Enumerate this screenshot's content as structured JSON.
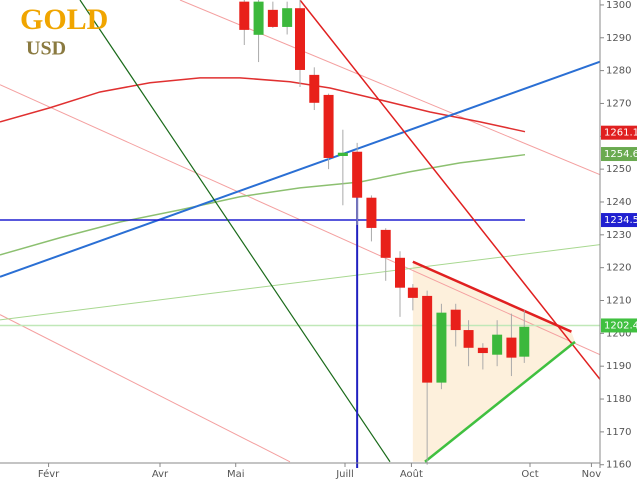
{
  "chart_data": {
    "type": "candlestick",
    "title": "GOLD",
    "subtitle": "USD",
    "title_color": "#f0a500",
    "subtitle_color": "#8a7a40",
    "xlim": [
      0,
      42
    ],
    "ylim": [
      1159,
      1301.5
    ],
    "xticks": [
      {
        "value": 3.4,
        "label": "Févr"
      },
      {
        "value": 11.2,
        "label": "Avr"
      },
      {
        "value": 16.5,
        "label": "Mai"
      },
      {
        "value": 24.15,
        "label": "Juill"
      },
      {
        "value": 28.8,
        "label": "Août"
      },
      {
        "value": 37.1,
        "label": "Oct"
      },
      {
        "value": 41.4,
        "label": "Nov"
      }
    ],
    "yticks": [
      1160,
      1170,
      1180,
      1190,
      1200,
      1210,
      1220,
      1230,
      1240,
      1250,
      1260,
      1270,
      1280,
      1290,
      1300
    ],
    "up_color": "#3cb83c",
    "down_color": "#e8201a",
    "x": [
      17.1,
      18.1,
      19.1,
      20.1,
      21.0,
      22.0,
      23.0,
      24.0,
      25.0,
      26.0,
      27.0,
      28.0,
      28.9,
      29.9,
      30.9,
      31.9,
      32.8,
      33.8,
      34.8,
      35.8,
      36.7
    ],
    "open": [
      1301,
      1290.9,
      1298.5,
      1293.3,
      1299,
      1278.7,
      1272.6,
      1254,
      1255.3,
      1241.3,
      1231.5,
      1223,
      1213.9,
      1211.4,
      1185,
      1207.2,
      1201,
      1195.6,
      1193.5,
      1198.7,
      1192.9
    ],
    "high": [
      1301.5,
      1301.5,
      1301,
      1301,
      1301.5,
      1281,
      1273,
      1262,
      1258,
      1242,
      1232,
      1225,
      1215,
      1213,
      1209,
      1209,
      1204,
      1197,
      1204,
      1206,
      1207
    ],
    "low": [
      1287.8,
      1282.6,
      1293,
      1291,
      1275,
      1268,
      1250,
      1239,
      1233,
      1228,
      1216,
      1205,
      1207,
      1160,
      1183,
      1196,
      1190,
      1189,
      1190,
      1187,
      1191
    ],
    "close": [
      1292.4,
      1301,
      1293.3,
      1299,
      1280.2,
      1270.2,
      1253.4,
      1255,
      1241.3,
      1232.1,
      1223,
      1213.9,
      1210.8,
      1185,
      1206.3,
      1201,
      1195.6,
      1194,
      1199.6,
      1192.6,
      1202
    ],
    "lines": [
      {
        "color": "#f4a0a0",
        "width": 1,
        "x": [
          0,
          20.3
        ],
        "values": [
          1205.7,
          1160.9
        ]
      },
      {
        "color": "#f4a0a0",
        "width": 1,
        "x": [
          0,
          42
        ],
        "values": [
          1275.7,
          1193.5
        ]
      },
      {
        "color": "#f4a0a0",
        "width": 1,
        "x": [
          12.6,
          42
        ],
        "values": [
          1301.5,
          1248.3
        ]
      },
      {
        "color": "#c0e8b8",
        "width": 1.5,
        "x": [
          0,
          42
        ],
        "values": [
          1202.4,
          1202.4
        ]
      },
      {
        "color": "#a8d890",
        "width": 1,
        "x": [
          0,
          42
        ],
        "values": [
          1204.1,
          1227.0
        ]
      },
      {
        "color": "#8cc070",
        "width": 1.5,
        "x": [
          0,
          4.2,
          8.4,
          12.6,
          16.8,
          21,
          25.2,
          28.7,
          32.2,
          36.75
        ],
        "values": [
          1223.9,
          1229.1,
          1233.9,
          1237.6,
          1241.6,
          1244.3,
          1246.1,
          1249.2,
          1251.9,
          1254.4
        ]
      },
      {
        "color": "#e03030",
        "width": 1.5,
        "x": [
          0,
          3.5,
          7,
          10.5,
          14,
          16.8,
          20.3,
          23.1,
          26.6,
          30.1,
          33.6,
          36.75
        ],
        "values": [
          1264.4,
          1268.7,
          1273.5,
          1276.3,
          1277.8,
          1277.8,
          1276.6,
          1274.7,
          1271.1,
          1267.4,
          1264.4,
          1261.4
        ]
      },
      {
        "color": "#2a6fd4",
        "width": 2,
        "x": [
          0,
          42
        ],
        "values": [
          1217.2,
          1282.7
        ]
      },
      {
        "color": "#2020d0",
        "width": 1.5,
        "x": [
          0,
          36.75
        ],
        "values": [
          1234.5,
          1234.5
        ]
      },
      {
        "color": "#1a6a1a",
        "width": 1.2,
        "x": [
          5.6,
          27.3
        ],
        "values": [
          1301.5,
          1160.9
        ]
      },
      {
        "color": "#e02020",
        "width": 1.5,
        "x": [
          21,
          42
        ],
        "values": [
          1301.5,
          1186
        ]
      },
      {
        "color": "#2020c0",
        "width": 2,
        "x": [
          25,
          25
        ],
        "values": [
          1246.7,
          1159
        ]
      },
      {
        "color": "#e02020",
        "width": 2.5,
        "x": [
          28.9,
          40
        ],
        "values": [
          1221.8,
          1200.5
        ]
      },
      {
        "color": "#40c040",
        "width": 2.5,
        "x": [
          29.75,
          40.25
        ],
        "values": [
          1160.9,
          1197.4
        ]
      }
    ],
    "price_labels": [
      {
        "value": 1261.1,
        "color": "#e02020"
      },
      {
        "value": 1254.6,
        "color": "#6aaa50"
      },
      {
        "value": 1234.5,
        "color": "#2020d0"
      },
      {
        "value": 1202.4,
        "color": "#40c040"
      }
    ]
  }
}
